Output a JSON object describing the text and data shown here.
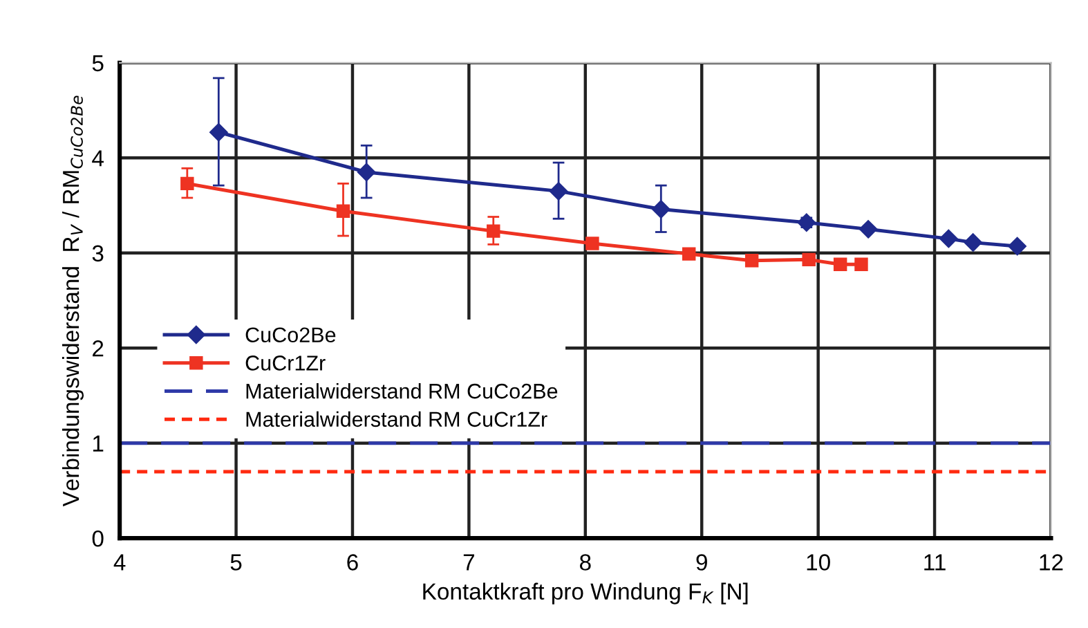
{
  "chart_data": {
    "type": "line",
    "xlabel": "Kontaktkraft pro Windung F$_{K}$ [N]",
    "ylabel": "Verbindungswiderstand  R$_{V}$ / RM$_{CuCo2Be}$",
    "series": [
      {
        "name": "CuCo2Be",
        "color": "#1f2a8c",
        "marker": "diamond",
        "x": [
          4.85,
          6.12,
          7.77,
          8.65,
          9.9,
          10.43,
          11.12,
          11.33,
          11.71
        ],
        "values": [
          4.27,
          3.85,
          3.65,
          3.46,
          3.32,
          3.25,
          3.15,
          3.11,
          3.07
        ],
        "errors": [
          [
            3.71,
            4.84
          ],
          [
            3.58,
            4.13
          ],
          [
            3.36,
            3.95
          ],
          [
            3.22,
            3.71
          ],
          [
            3.27,
            3.37
          ],
          null,
          null,
          null,
          null
        ]
      },
      {
        "name": "CuCr1Zr",
        "color": "#ee3322",
        "marker": "square",
        "x": [
          4.58,
          5.92,
          7.21,
          8.06,
          8.89,
          9.43,
          9.92,
          10.19,
          10.37
        ],
        "values": [
          3.73,
          3.44,
          3.23,
          3.1,
          2.99,
          2.92,
          2.93,
          2.88,
          2.88
        ],
        "errors": [
          [
            3.58,
            3.89
          ],
          [
            3.18,
            3.73
          ],
          [
            3.09,
            3.38
          ],
          null,
          null,
          null,
          null,
          null,
          null
        ]
      }
    ],
    "ref_lines": [
      {
        "axis": "y",
        "value": 1,
        "label": "Materialwiderstand RM CuCo2Be",
        "color": "#2f3aa8",
        "line_style": "dashed"
      },
      {
        "axis": "y",
        "value": 0.7,
        "label": "Materialwiderstand RM CuCr1Zr",
        "color": "#ff2a10",
        "line_style": "dotted"
      }
    ],
    "xlim": [
      4,
      12
    ],
    "xticks": [
      4,
      5,
      6,
      7,
      8,
      9,
      10,
      11,
      12
    ],
    "ylim": [
      0,
      5
    ],
    "yticks": [
      0,
      1,
      2,
      3,
      4,
      5
    ],
    "grid": true,
    "legend": "center left"
  }
}
